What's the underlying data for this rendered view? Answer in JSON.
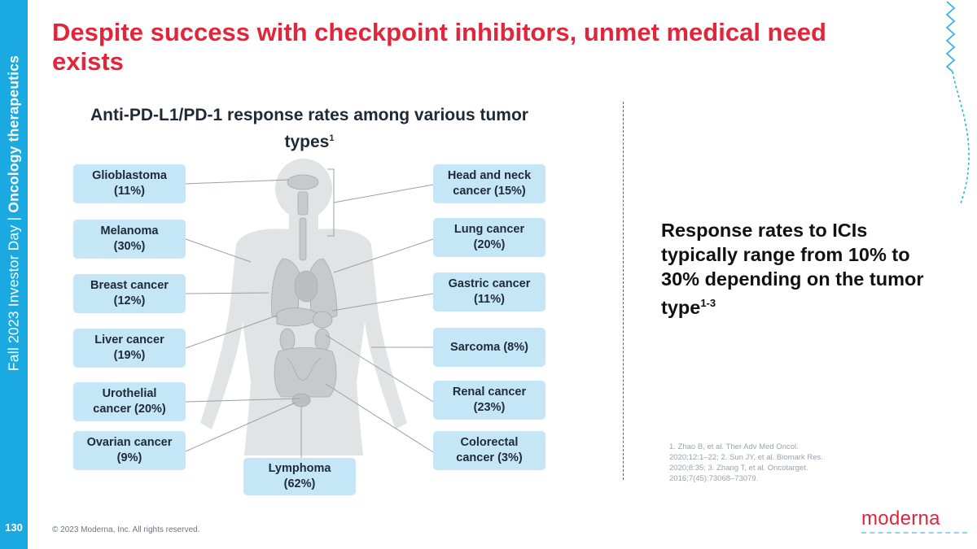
{
  "slide": {
    "title": "Despite success with checkpoint inhibitors, unmet medical need exists",
    "section_normal": "Fall 2023 Investor Day | ",
    "section_bold": "Oncology therapeutics",
    "page_number": "130",
    "copyright": "© 2023 Moderna, Inc. All rights reserved.",
    "logo": "moderna",
    "colors": {
      "accent": "#e1263c",
      "sidebar": "#1aa9e0",
      "box": "#c5e6f7"
    }
  },
  "diagram": {
    "title": "Anti-PD-L1/PD-1 response rates among various tumor types",
    "title_sup": "1",
    "left_boxes": [
      {
        "name": "Glioblastoma",
        "rate": "(11%)"
      },
      {
        "name": "Melanoma",
        "rate": "(30%)"
      },
      {
        "name": "Breast cancer",
        "rate": "(12%)"
      },
      {
        "name": "Liver cancer",
        "rate": "(19%)"
      },
      {
        "name": "Urothelial",
        "rate": "cancer (20%)"
      },
      {
        "name": "Ovarian cancer",
        "rate": "(9%)"
      }
    ],
    "bottom_box": {
      "name": "Lymphoma",
      "rate": "(62%)"
    },
    "right_boxes": [
      {
        "name": "Head and neck",
        "rate": "cancer (15%)"
      },
      {
        "name": "Lung cancer",
        "rate": "(20%)"
      },
      {
        "name": "Gastric cancer",
        "rate": "(11%)"
      },
      {
        "name": "Sarcoma (8%)",
        "rate": ""
      },
      {
        "name": "Renal cancer",
        "rate": "(23%)"
      },
      {
        "name": "Colorectal",
        "rate": "cancer (3%)"
      }
    ]
  },
  "callout": {
    "text": "Response rates to ICIs typically range from 10% to 30% depending on the tumor type",
    "sup": "1-3"
  },
  "references": {
    "lines": [
      "1. Zhao B, et al. Ther Adv Med Oncol.",
      "2020;12:1–22; 2. Sun JY, et al. Biomark Res.",
      "2020;8:35; 3. Zhang T, et al. Oncotarget.",
      "2016;7(45):73068–73079."
    ]
  }
}
